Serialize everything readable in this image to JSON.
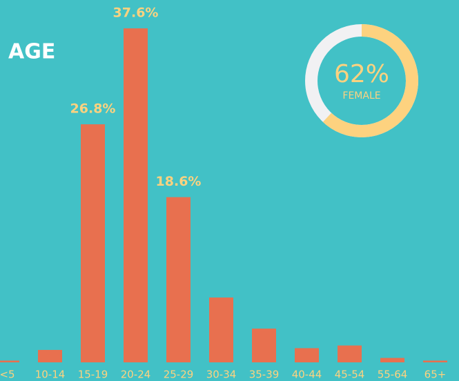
{
  "chart_data": [
    {
      "type": "bar",
      "title": "AGE",
      "categories": [
        "<5",
        "10-14",
        "15-19",
        "20-24",
        "25-29",
        "30-34",
        "35-39",
        "40-44",
        "45-54",
        "55-64",
        "65+"
      ],
      "values": [
        0.2,
        1.4,
        26.8,
        37.6,
        18.6,
        7.3,
        3.8,
        1.6,
        1.9,
        0.5,
        0.2
      ],
      "value_labels": [
        null,
        null,
        "26.8%",
        "37.6%",
        "18.6%",
        null,
        null,
        null,
        null,
        null,
        null
      ],
      "color": "#e8704f",
      "label_color": "#fdd27f"
    },
    {
      "type": "donut",
      "value": 62,
      "value_label": "62%",
      "caption": "FEMALE",
      "color": "#fdd27f",
      "rest_color": "#f1f1f3"
    }
  ]
}
